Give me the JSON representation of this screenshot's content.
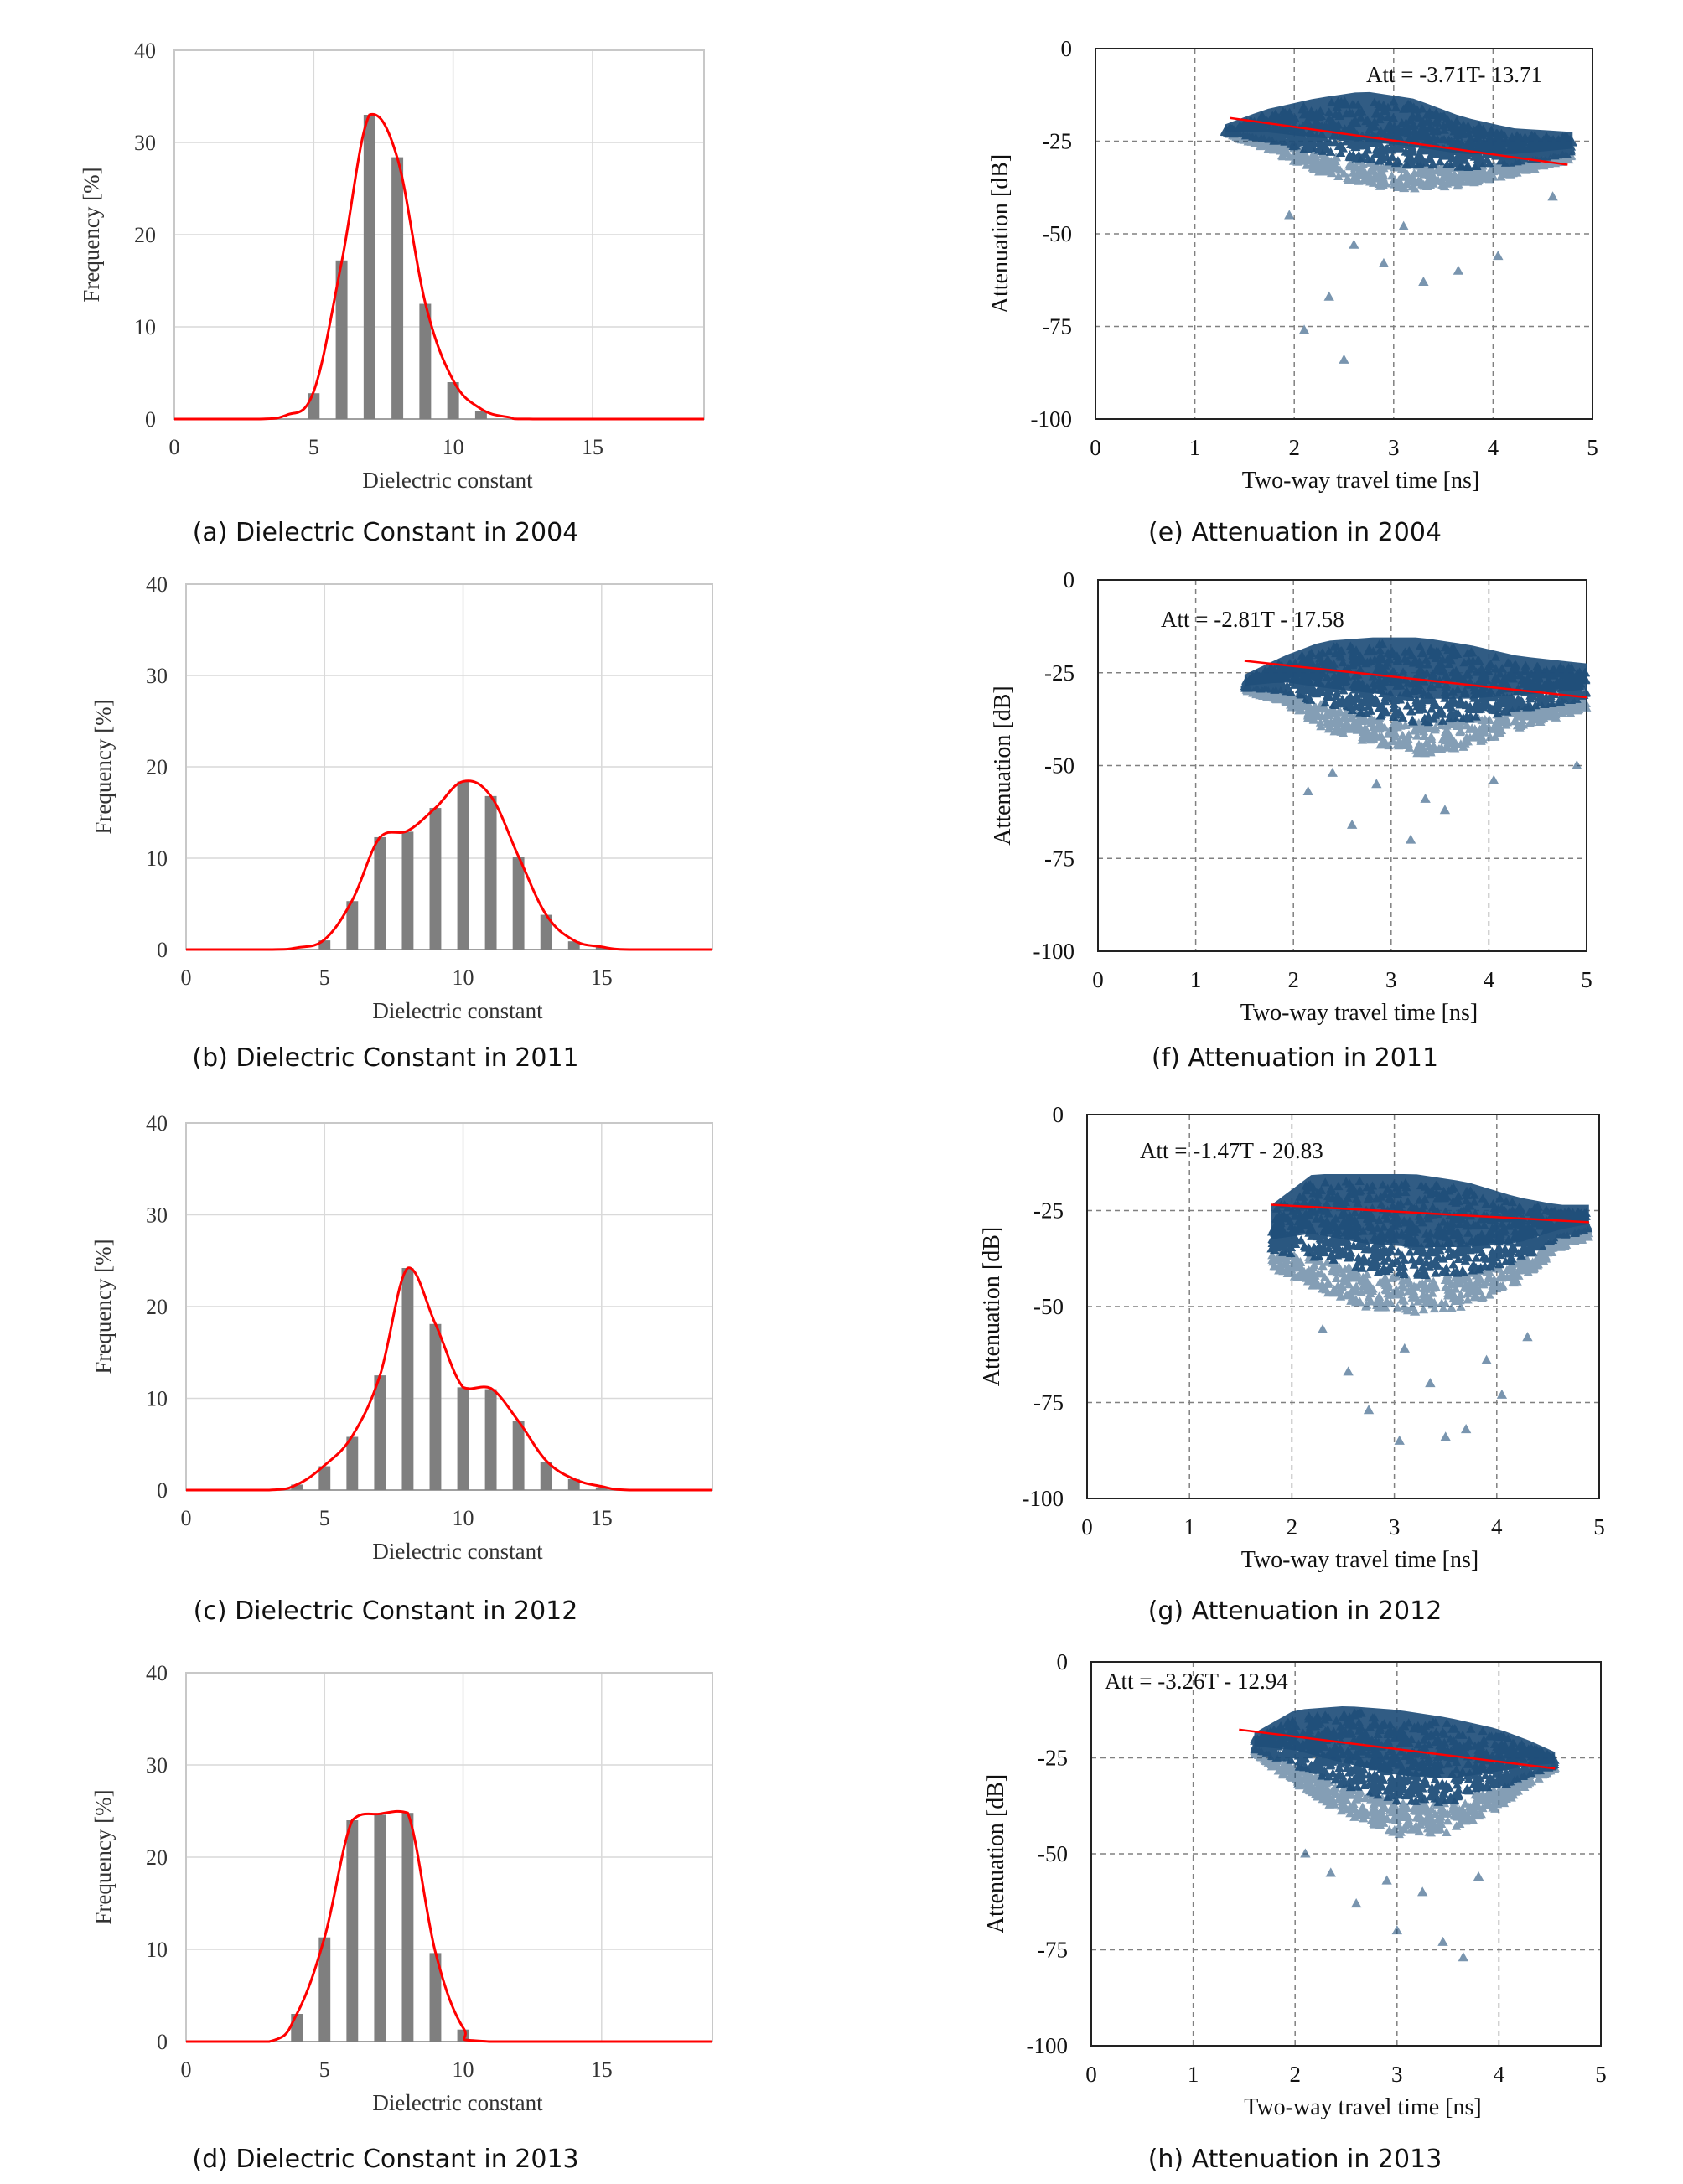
{
  "colors": {
    "bar": "#7f7f7f",
    "curve": "#ff0000",
    "scatter": "#1f4e79",
    "grid": "#d9d9d9",
    "dashed": "#808080"
  },
  "histograms": [
    {
      "caption": "(a) Dielectric Constant in 2004",
      "chart_data": {
        "type": "bar",
        "xlabel": "Dielectric constant",
        "ylabel": "Frequency [%]",
        "xlim": [
          0,
          19
        ],
        "ylim": [
          0,
          40
        ],
        "xticks": [
          "0",
          "5",
          "10",
          "15"
        ],
        "yticks": [
          "0",
          "10",
          "20",
          "30",
          "40"
        ],
        "grid": true,
        "categories": [
          5,
          6,
          7,
          8,
          9,
          10,
          11
        ],
        "values": [
          2.8,
          17.2,
          33,
          28.4,
          12.5,
          4,
          0.9
        ],
        "curve": {
          "x": [
            0,
            3,
            4,
            5,
            6,
            7,
            8,
            9,
            10,
            11,
            12,
            13,
            19
          ],
          "y": [
            0,
            0,
            0.4,
            3,
            17,
            33,
            28.3,
            12.6,
            4.2,
            1.1,
            0.2,
            0,
            0
          ]
        }
      }
    },
    {
      "caption": "(b) Dielectric Constant in 2011",
      "chart_data": {
        "type": "bar",
        "xlabel": "Dielectric constant",
        "ylabel": "Frequency [%]",
        "xlim": [
          0,
          19
        ],
        "ylim": [
          0,
          40
        ],
        "xticks": [
          "0",
          "5",
          "10",
          "15"
        ],
        "yticks": [
          "0",
          "10",
          "20",
          "30",
          "40"
        ],
        "grid": true,
        "categories": [
          5,
          6,
          7,
          8,
          9,
          10,
          11,
          12,
          13,
          14,
          15
        ],
        "values": [
          1,
          5.3,
          12.3,
          12.9,
          15.5,
          18.4,
          16.8,
          10.1,
          3.8,
          0.9,
          0.3
        ],
        "curve": {
          "x": [
            0,
            3,
            4,
            5,
            6,
            7,
            8,
            9,
            10,
            11,
            12,
            13,
            14,
            15,
            16,
            19
          ],
          "y": [
            0,
            0,
            0.2,
            1.1,
            5.4,
            12.3,
            13,
            15.5,
            18.4,
            16.8,
            10.2,
            3.8,
            1,
            0.3,
            0,
            0
          ]
        }
      }
    },
    {
      "caption": "(c) Dielectric Constant in 2012",
      "chart_data": {
        "type": "bar",
        "xlabel": "Dielectric constant",
        "ylabel": "Frequency [%]",
        "xlim": [
          0,
          19
        ],
        "ylim": [
          0,
          40
        ],
        "xticks": [
          "0",
          "5",
          "10",
          "15"
        ],
        "yticks": [
          "0",
          "10",
          "20",
          "30",
          "40"
        ],
        "grid": true,
        "categories": [
          4,
          5,
          6,
          7,
          8,
          9,
          10,
          11,
          12,
          13,
          14,
          15
        ],
        "values": [
          0.6,
          2.6,
          5.8,
          12.5,
          24.2,
          18.1,
          11.2,
          11,
          7.5,
          3.1,
          1.2,
          0.3
        ],
        "curve": {
          "x": [
            0,
            3,
            4,
            5,
            6,
            7,
            8,
            9,
            10,
            11,
            12,
            13,
            14,
            15,
            16,
            19
          ],
          "y": [
            0,
            0,
            0.6,
            2.7,
            5.9,
            12.5,
            24.2,
            18.1,
            11.2,
            11.1,
            7.5,
            3.2,
            1.2,
            0.4,
            0,
            0
          ]
        }
      }
    },
    {
      "caption": "(d) Dielectric Constant in 2013",
      "chart_data": {
        "type": "bar",
        "xlabel": "Dielectric constant",
        "ylabel": "Frequency [%]",
        "xlim": [
          0,
          19
        ],
        "ylim": [
          0,
          40
        ],
        "xticks": [
          "0",
          "5",
          "10",
          "15"
        ],
        "yticks": [
          "0",
          "10",
          "20",
          "30",
          "40"
        ],
        "grid": true,
        "categories": [
          4,
          5,
          6,
          7,
          8,
          9,
          10
        ],
        "values": [
          3,
          11.3,
          24,
          24.6,
          24.8,
          9.6,
          1.3
        ],
        "curve": {
          "x": [
            0,
            3,
            4,
            5,
            6,
            7,
            8,
            9,
            10,
            11,
            19
          ],
          "y": [
            0,
            0,
            3,
            11.3,
            24,
            24.7,
            24.8,
            9.7,
            1.5,
            0,
            0
          ]
        }
      }
    }
  ],
  "scatters": [
    {
      "caption": "(e) Attenuation in 2004",
      "chart_data": {
        "type": "scatter",
        "xlabel": "Two-way travel time [ns]",
        "ylabel": "Attenuation [dB]",
        "xlim": [
          0,
          5
        ],
        "ylim": [
          -100,
          0
        ],
        "xticks": [
          "0",
          "1",
          "2",
          "3",
          "4",
          "5"
        ],
        "yticks": [
          "0",
          "-25",
          "-50",
          "-75",
          "-100"
        ],
        "annotation": "Att = -3.71T- 13.71",
        "fit": {
          "slope": -3.71,
          "intercept": -13.71,
          "x_range": [
            1.35,
            4.75
          ]
        },
        "cloud": {
          "x_range": [
            1.3,
            4.8
          ],
          "top": [
            [
              1.3,
              -22
            ],
            [
              1.7,
              -18
            ],
            [
              2.2,
              -15
            ],
            [
              2.7,
              -13
            ],
            [
              3.2,
              -15
            ],
            [
              3.7,
              -20
            ],
            [
              4.2,
              -23
            ],
            [
              4.8,
              -24
            ]
          ],
          "bottom": [
            [
              1.3,
              -23
            ],
            [
              1.7,
              -27
            ],
            [
              2.2,
              -33
            ],
            [
              2.7,
              -37
            ],
            [
              3.2,
              -38
            ],
            [
              3.7,
              -37
            ],
            [
              4.2,
              -34
            ],
            [
              4.8,
              -30
            ]
          ]
        },
        "sparse_points": [
          [
            2.1,
            -76
          ],
          [
            2.5,
            -84
          ],
          [
            2.35,
            -67
          ],
          [
            3.3,
            -63
          ],
          [
            2.9,
            -58
          ],
          [
            3.65,
            -60
          ],
          [
            4.05,
            -56
          ],
          [
            2.6,
            -53
          ],
          [
            3.1,
            -48
          ],
          [
            1.95,
            -45
          ],
          [
            4.6,
            -40
          ]
        ]
      }
    },
    {
      "caption": "(f) Attenuation in 2011",
      "chart_data": {
        "type": "scatter",
        "xlabel": "Two-way travel time [ns]",
        "ylabel": "Attenuation [dB]",
        "xlim": [
          0,
          5
        ],
        "ylim": [
          -100,
          0
        ],
        "xticks": [
          "0",
          "1",
          "2",
          "3",
          "4",
          "5"
        ],
        "yticks": [
          "0",
          "-25",
          "-50",
          "-75",
          "-100"
        ],
        "annotation": "Att = -2.81T - 17.58",
        "fit": {
          "slope": -2.81,
          "intercept": -17.58,
          "x_range": [
            1.5,
            5
          ]
        },
        "cloud": {
          "x_range": [
            1.5,
            5
          ],
          "top": [
            [
              1.5,
              -27
            ],
            [
              1.9,
              -22
            ],
            [
              2.3,
              -18
            ],
            [
              2.8,
              -17
            ],
            [
              3.3,
              -17
            ],
            [
              3.8,
              -19
            ],
            [
              4.3,
              -22
            ],
            [
              5,
              -24
            ]
          ],
          "bottom": [
            [
              1.5,
              -30
            ],
            [
              1.9,
              -33
            ],
            [
              2.3,
              -40
            ],
            [
              2.8,
              -44
            ],
            [
              3.3,
              -47
            ],
            [
              3.8,
              -45
            ],
            [
              4.3,
              -40
            ],
            [
              5,
              -35
            ]
          ]
        },
        "sparse_points": [
          [
            3.2,
            -70
          ],
          [
            2.6,
            -66
          ],
          [
            3.55,
            -62
          ],
          [
            2.15,
            -57
          ],
          [
            2.85,
            -55
          ],
          [
            4.05,
            -54
          ],
          [
            4.9,
            -50
          ],
          [
            3.35,
            -59
          ],
          [
            2.4,
            -52
          ]
        ]
      }
    },
    {
      "caption": "(g) Attenuation in 2012",
      "chart_data": {
        "type": "scatter",
        "xlabel": "Two-way travel time [ns]",
        "ylabel": "Attenuation [dB]",
        "xlim": [
          0,
          5
        ],
        "ylim": [
          -100,
          0
        ],
        "xticks": [
          "0",
          "1",
          "2",
          "3",
          "4",
          "5"
        ],
        "yticks": [
          "0",
          "-25",
          "-50",
          "-75",
          "-100"
        ],
        "annotation": "Att = -1.47T - 20.83",
        "fit": {
          "slope": -1.47,
          "intercept": -20.83,
          "x_range": [
            1.8,
            4.9
          ]
        },
        "cloud": {
          "x_range": [
            1.8,
            4.9
          ],
          "top": [
            [
              1.8,
              -25
            ],
            [
              2.2,
              -17
            ],
            [
              2.7,
              -17
            ],
            [
              3.2,
              -17
            ],
            [
              3.7,
              -19
            ],
            [
              4.2,
              -23
            ],
            [
              4.6,
              -25
            ],
            [
              4.9,
              -25
            ]
          ],
          "bottom": [
            [
              1.8,
              -40
            ],
            [
              2.2,
              -45
            ],
            [
              2.7,
              -50
            ],
            [
              3.2,
              -52
            ],
            [
              3.7,
              -50
            ],
            [
              4.2,
              -44
            ],
            [
              4.6,
              -35
            ],
            [
              4.9,
              -32
            ]
          ]
        },
        "sparse_points": [
          [
            3.05,
            -85
          ],
          [
            3.5,
            -84
          ],
          [
            3.7,
            -82
          ],
          [
            2.75,
            -77
          ],
          [
            4.05,
            -73
          ],
          [
            3.35,
            -70
          ],
          [
            2.55,
            -67
          ],
          [
            3.9,
            -64
          ],
          [
            3.1,
            -61
          ],
          [
            4.3,
            -58
          ],
          [
            2.3,
            -56
          ]
        ]
      }
    },
    {
      "caption": "(h) Attenuation in 2013",
      "chart_data": {
        "type": "scatter",
        "xlabel": "Two-way travel time [ns]",
        "ylabel": "Attenuation [dB]",
        "xlim": [
          0,
          5
        ],
        "ylim": [
          -100,
          0
        ],
        "xticks": [
          "0",
          "1",
          "2",
          "3",
          "4",
          "5"
        ],
        "yticks": [
          "0",
          "-25",
          "-50",
          "-75",
          "-100"
        ],
        "annotation": "Att = -3.26T - 12.94",
        "fit": {
          "slope": -3.26,
          "intercept": -12.94,
          "x_range": [
            1.45,
            4.55
          ]
        },
        "cloud": {
          "x_range": [
            1.6,
            4.55
          ],
          "top": [
            [
              1.6,
              -20
            ],
            [
              2,
              -14
            ],
            [
              2.5,
              -13
            ],
            [
              3,
              -14
            ],
            [
              3.5,
              -16
            ],
            [
              4,
              -19
            ],
            [
              4.3,
              -22
            ],
            [
              4.55,
              -25
            ]
          ],
          "bottom": [
            [
              1.6,
              -24
            ],
            [
              2,
              -32
            ],
            [
              2.5,
              -40
            ],
            [
              3,
              -45
            ],
            [
              3.5,
              -45
            ],
            [
              4,
              -38
            ],
            [
              4.3,
              -32
            ],
            [
              4.55,
              -28
            ]
          ]
        },
        "sparse_points": [
          [
            3.65,
            -77
          ],
          [
            3.45,
            -73
          ],
          [
            3.0,
            -70
          ],
          [
            2.6,
            -63
          ],
          [
            3.25,
            -60
          ],
          [
            2.35,
            -55
          ],
          [
            3.8,
            -56
          ],
          [
            2.9,
            -57
          ],
          [
            2.1,
            -50
          ]
        ]
      }
    }
  ]
}
